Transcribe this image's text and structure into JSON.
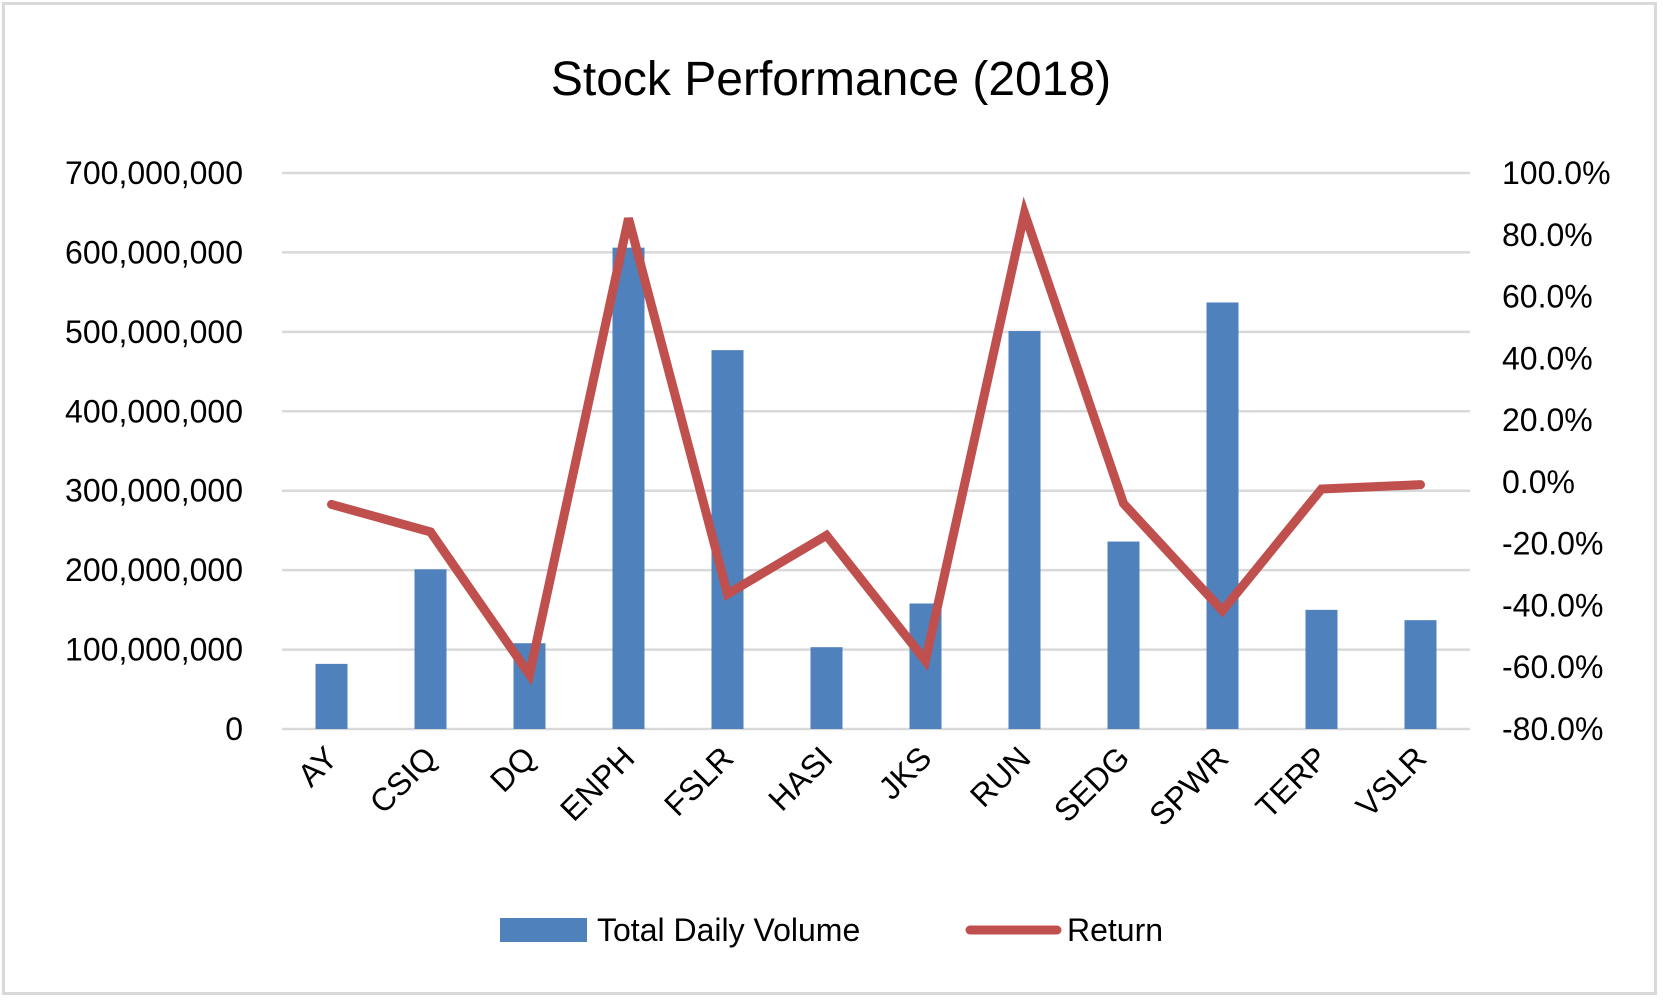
{
  "chart_data": {
    "type": "bar",
    "title": "Stock Performance (2018)",
    "categories": [
      "AY",
      "CSIQ",
      "DQ",
      "ENPH",
      "FSLR",
      "HASI",
      "JKS",
      "RUN",
      "SEDG",
      "SPWR",
      "TERP",
      "VSLR"
    ],
    "series": [
      {
        "name": "Total Daily Volume",
        "type": "bar",
        "axis": "left",
        "color": "#4f81bd",
        "values": [
          82000000,
          201000000,
          108000000,
          606000000,
          477000000,
          103000000,
          158000000,
          501000000,
          236000000,
          537000000,
          150000000,
          137000000
        ]
      },
      {
        "name": "Return",
        "type": "line",
        "axis": "right",
        "color": "#c0504d",
        "values": [
          -0.073,
          -0.162,
          -0.624,
          0.853,
          -0.363,
          -0.173,
          -0.579,
          0.87,
          -0.07,
          -0.417,
          -0.023,
          -0.009
        ]
      }
    ],
    "y_left": {
      "ylim": [
        0,
        700000000
      ],
      "ticks": [
        0,
        100000000,
        200000000,
        300000000,
        400000000,
        500000000,
        600000000,
        700000000
      ],
      "tick_labels": [
        "0",
        "100,000,000",
        "200,000,000",
        "300,000,000",
        "400,000,000",
        "500,000,000",
        "600,000,000",
        "700,000,000"
      ]
    },
    "y_right": {
      "ylim": [
        -0.8,
        1.0
      ],
      "ticks": [
        -0.8,
        -0.6,
        -0.4,
        -0.2,
        0.0,
        0.2,
        0.4,
        0.6,
        0.8,
        1.0
      ],
      "tick_labels": [
        "-80.0%",
        "-60.0%",
        "-40.0%",
        "-20.0%",
        "0.0%",
        "20.0%",
        "40.0%",
        "60.0%",
        "80.0%",
        "100.0%"
      ]
    },
    "grid": true,
    "legend_position": "bottom",
    "gridline_color": "#d9d9d9"
  }
}
